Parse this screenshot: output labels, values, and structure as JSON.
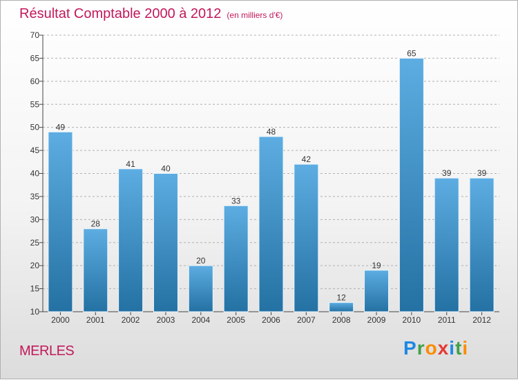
{
  "header": {
    "title": "Résultat Comptable 2000 à 2012",
    "subtitle": "(en milliers d'€)"
  },
  "footer": {
    "place": "MERLES",
    "logo_letters": [
      {
        "ch": "P",
        "color": "#1e88e5"
      },
      {
        "ch": "r",
        "color": "#43a047"
      },
      {
        "ch": "o",
        "color": "#fb8c00"
      },
      {
        "ch": "x",
        "color": "#e53935"
      },
      {
        "ch": "i",
        "color": "#1e88e5"
      },
      {
        "ch": "t",
        "color": "#43a047"
      },
      {
        "ch": "i",
        "color": "#fb8c00"
      }
    ]
  },
  "colors": {
    "title": "#c2185b",
    "bar_top": "#5dade2",
    "bar_bottom": "#2471a3",
    "grid": "#b0b0b0",
    "axis": "#444444"
  },
  "chart_data": {
    "type": "bar",
    "title": "Résultat Comptable 2000 à 2012",
    "subtitle": "(en milliers d'€)",
    "categories": [
      "2000",
      "2001",
      "2002",
      "2003",
      "2004",
      "2005",
      "2006",
      "2007",
      "2008",
      "2009",
      "2010",
      "2011",
      "2012"
    ],
    "values": [
      49,
      28,
      41,
      40,
      20,
      33,
      48,
      42,
      12,
      19,
      65,
      39,
      39
    ],
    "ylim": [
      10,
      70
    ],
    "yticks": [
      10,
      15,
      20,
      25,
      30,
      35,
      40,
      45,
      50,
      55,
      60,
      65,
      70
    ],
    "grid": true,
    "legend": "none"
  }
}
